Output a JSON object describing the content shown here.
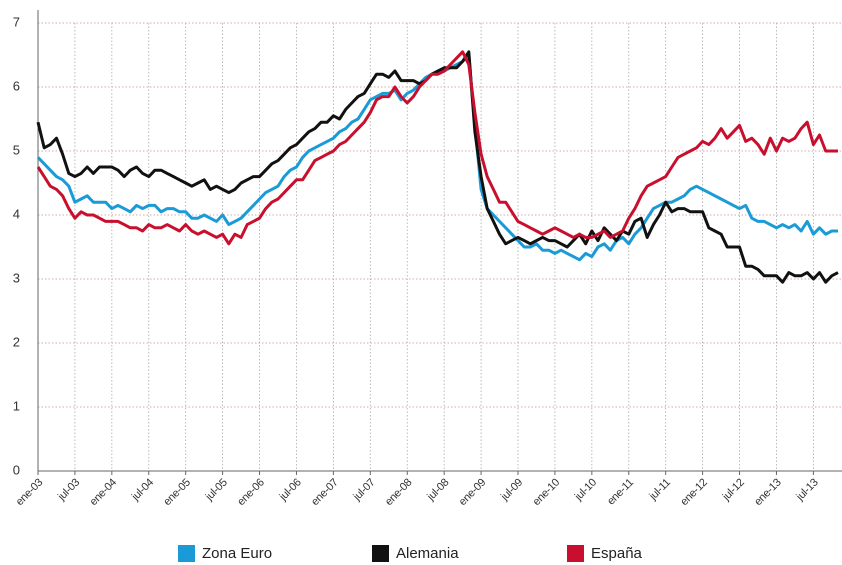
{
  "chart_data": {
    "type": "line",
    "categories": [
      "ene-03",
      null,
      null,
      null,
      null,
      null,
      "jul-03",
      null,
      null,
      null,
      null,
      null,
      "ene-04",
      null,
      null,
      null,
      null,
      null,
      "jul-04",
      null,
      null,
      null,
      null,
      null,
      "ene-05",
      null,
      null,
      null,
      null,
      null,
      "jul-05",
      null,
      null,
      null,
      null,
      null,
      "ene-06",
      null,
      null,
      null,
      null,
      null,
      "jul-06",
      null,
      null,
      null,
      null,
      null,
      "ene-07",
      null,
      null,
      null,
      null,
      null,
      "jul-07",
      null,
      null,
      null,
      null,
      null,
      "ene-08",
      null,
      null,
      null,
      null,
      null,
      "jul-08",
      null,
      null,
      null,
      null,
      null,
      "ene-09",
      null,
      null,
      null,
      null,
      null,
      "jul-09",
      null,
      null,
      null,
      null,
      null,
      "ene-10",
      null,
      null,
      null,
      null,
      null,
      "jul-10",
      null,
      null,
      null,
      null,
      null,
      "ene-11",
      null,
      null,
      null,
      null,
      null,
      "jul-11",
      null,
      null,
      null,
      null,
      null,
      "ene-12",
      null,
      null,
      null,
      null,
      null,
      "jul-12",
      null,
      null,
      null,
      null,
      null,
      "ene-13",
      null,
      null,
      null,
      null,
      null,
      "jul-13",
      null,
      null,
      null,
      null
    ],
    "series": [
      {
        "name": "Zona Euro",
        "color": "#1a9bd7",
        "values": [
          4.9,
          4.8,
          4.7,
          4.6,
          4.55,
          4.45,
          4.2,
          4.25,
          4.3,
          4.2,
          4.2,
          4.2,
          4.1,
          4.15,
          4.1,
          4.05,
          4.15,
          4.1,
          4.15,
          4.15,
          4.05,
          4.1,
          4.1,
          4.05,
          4.05,
          3.95,
          3.95,
          4.0,
          3.95,
          3.9,
          4.0,
          3.85,
          3.9,
          3.95,
          4.05,
          4.15,
          4.25,
          4.35,
          4.4,
          4.45,
          4.6,
          4.7,
          4.75,
          4.9,
          5.0,
          5.05,
          5.1,
          5.15,
          5.2,
          5.3,
          5.35,
          5.45,
          5.5,
          5.65,
          5.8,
          5.85,
          5.9,
          5.9,
          5.95,
          5.8,
          5.9,
          5.95,
          6.05,
          6.15,
          6.2,
          6.25,
          6.25,
          6.3,
          6.35,
          6.4,
          6.5,
          5.4,
          4.4,
          4.1,
          4.0,
          3.9,
          3.8,
          3.7,
          3.6,
          3.5,
          3.5,
          3.55,
          3.45,
          3.45,
          3.4,
          3.45,
          3.4,
          3.35,
          3.3,
          3.4,
          3.35,
          3.5,
          3.55,
          3.45,
          3.6,
          3.65,
          3.55,
          3.7,
          3.8,
          3.95,
          4.1,
          4.15,
          4.2,
          4.2,
          4.25,
          4.3,
          4.4,
          4.45,
          4.4,
          4.35,
          4.3,
          4.25,
          4.2,
          4.15,
          4.1,
          4.15,
          3.95,
          3.9,
          3.9,
          3.85,
          3.8,
          3.85,
          3.8,
          3.85,
          3.75,
          3.9,
          3.7,
          3.8,
          3.7,
          3.75,
          3.75
        ]
      },
      {
        "name": "Alemania",
        "color": "#111111",
        "values": [
          5.45,
          5.05,
          5.1,
          5.2,
          4.95,
          4.65,
          4.6,
          4.65,
          4.75,
          4.65,
          4.75,
          4.75,
          4.75,
          4.7,
          4.6,
          4.7,
          4.75,
          4.65,
          4.6,
          4.7,
          4.7,
          4.65,
          4.6,
          4.55,
          4.5,
          4.45,
          4.5,
          4.55,
          4.4,
          4.45,
          4.4,
          4.35,
          4.4,
          4.5,
          4.55,
          4.6,
          4.6,
          4.7,
          4.8,
          4.85,
          4.95,
          5.05,
          5.1,
          5.2,
          5.3,
          5.35,
          5.45,
          5.45,
          5.55,
          5.5,
          5.65,
          5.75,
          5.85,
          5.9,
          6.05,
          6.2,
          6.2,
          6.15,
          6.25,
          6.1,
          6.1,
          6.1,
          6.05,
          6.1,
          6.2,
          6.25,
          6.3,
          6.3,
          6.3,
          6.4,
          6.55,
          5.3,
          4.6,
          4.1,
          3.9,
          3.7,
          3.55,
          3.6,
          3.65,
          3.6,
          3.55,
          3.6,
          3.65,
          3.6,
          3.6,
          3.55,
          3.5,
          3.6,
          3.7,
          3.55,
          3.75,
          3.6,
          3.8,
          3.7,
          3.6,
          3.75,
          3.7,
          3.9,
          3.95,
          3.65,
          3.85,
          4.0,
          4.2,
          4.05,
          4.1,
          4.1,
          4.05,
          4.05,
          4.05,
          3.8,
          3.75,
          3.7,
          3.5,
          3.5,
          3.5,
          3.2,
          3.2,
          3.15,
          3.05,
          3.05,
          3.05,
          2.95,
          3.1,
          3.05,
          3.05,
          3.1,
          3.0,
          3.1,
          2.95,
          3.05,
          3.1
        ]
      },
      {
        "name": "España",
        "color": "#c8102e",
        "values": [
          4.75,
          4.6,
          4.45,
          4.4,
          4.3,
          4.1,
          3.95,
          4.05,
          4.0,
          4.0,
          3.95,
          3.9,
          3.9,
          3.9,
          3.85,
          3.8,
          3.8,
          3.75,
          3.85,
          3.8,
          3.8,
          3.85,
          3.8,
          3.75,
          3.85,
          3.75,
          3.7,
          3.75,
          3.7,
          3.65,
          3.7,
          3.55,
          3.7,
          3.65,
          3.85,
          3.9,
          3.95,
          4.1,
          4.2,
          4.25,
          4.35,
          4.45,
          4.55,
          4.55,
          4.7,
          4.85,
          4.9,
          4.95,
          5.0,
          5.1,
          5.15,
          5.25,
          5.35,
          5.45,
          5.6,
          5.8,
          5.85,
          5.85,
          6.0,
          5.85,
          5.75,
          5.85,
          6.0,
          6.1,
          6.2,
          6.2,
          6.25,
          6.35,
          6.45,
          6.55,
          6.35,
          5.6,
          4.95,
          4.6,
          4.4,
          4.2,
          4.2,
          4.05,
          3.9,
          3.85,
          3.8,
          3.75,
          3.7,
          3.75,
          3.8,
          3.75,
          3.7,
          3.65,
          3.7,
          3.65,
          3.65,
          3.7,
          3.75,
          3.65,
          3.7,
          3.75,
          3.95,
          4.1,
          4.3,
          4.45,
          4.5,
          4.55,
          4.6,
          4.75,
          4.9,
          4.95,
          5.0,
          5.05,
          5.15,
          5.1,
          5.2,
          5.35,
          5.2,
          5.3,
          5.4,
          5.15,
          5.2,
          5.1,
          4.95,
          5.2,
          5.0,
          5.2,
          5.15,
          5.2,
          5.35,
          5.45,
          5.1,
          5.25,
          5.0,
          5.0,
          5.0
        ]
      }
    ],
    "ylim": [
      0,
      7
    ],
    "yticks": [
      0,
      1,
      2,
      3,
      4,
      5,
      6,
      7
    ],
    "grid": true,
    "legend": "bottom"
  }
}
